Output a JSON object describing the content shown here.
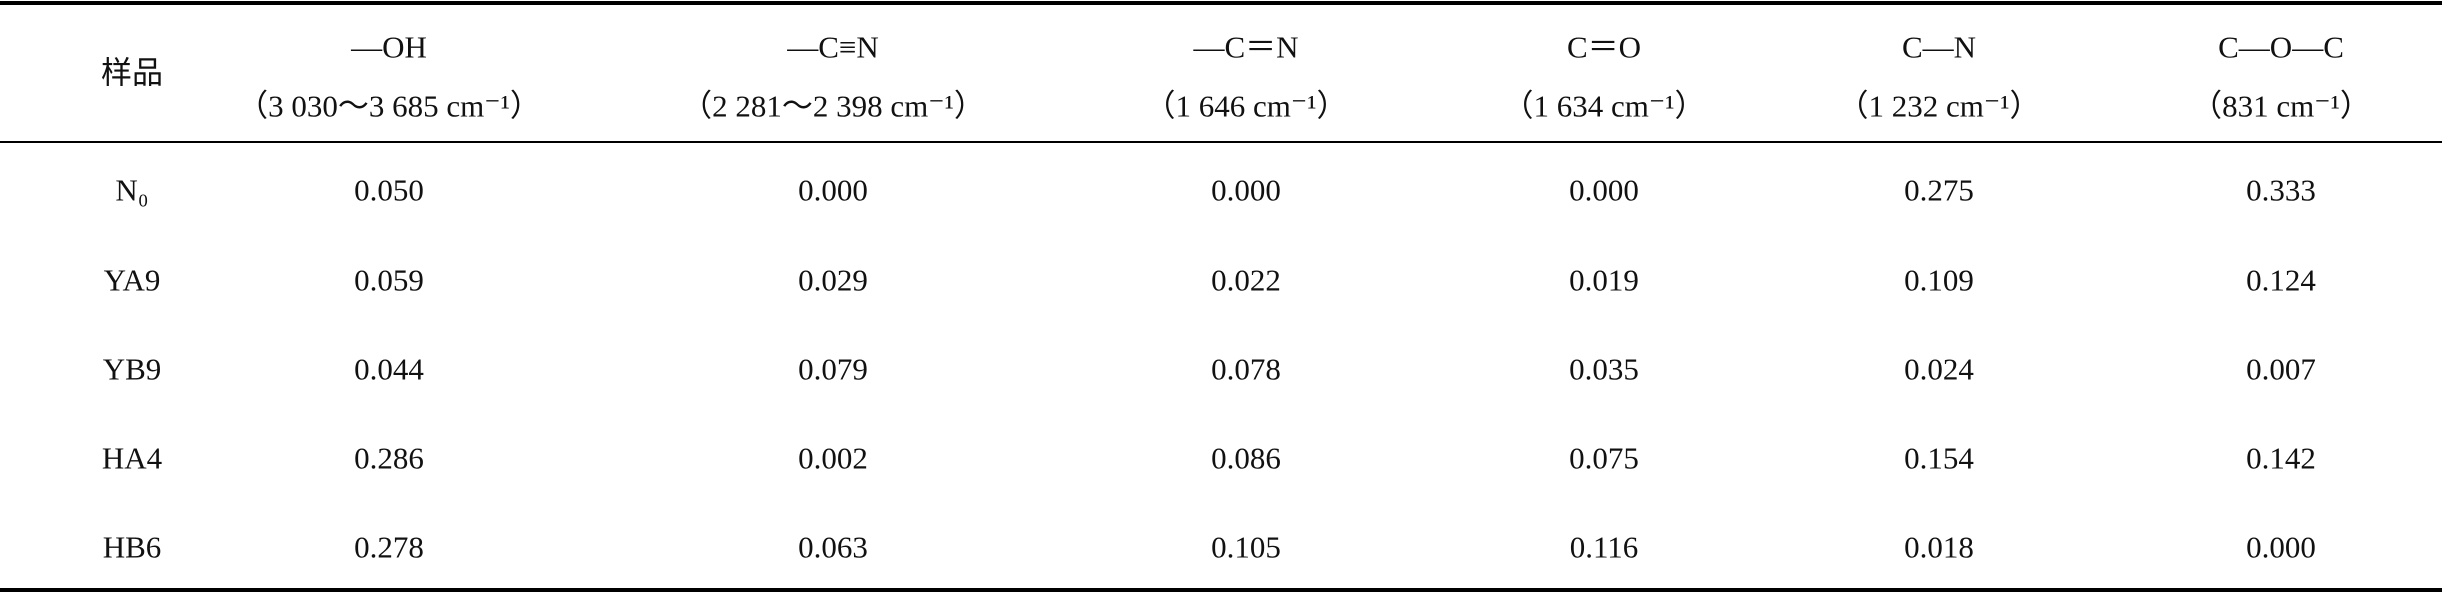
{
  "table": {
    "header": [
      {
        "name": "样品"
      },
      {
        "name": "—OH",
        "range": "（3 030～3 685 cm⁻¹）"
      },
      {
        "name": "—C≡N",
        "range": "（2 281～2 398 cm⁻¹）"
      },
      {
        "name": "—C＝N",
        "range": "（1 646 cm⁻¹）"
      },
      {
        "name": "C＝O",
        "range": "（1 634 cm⁻¹）"
      },
      {
        "name": "C—N",
        "range": "（1 232 cm⁻¹）"
      },
      {
        "name": "C—O—C",
        "range": "（831 cm⁻¹）"
      }
    ],
    "rows": [
      [
        "N₀",
        "0.050",
        "0.000",
        "0.000",
        "0.000",
        "0.275",
        "0.333"
      ],
      [
        "YA9",
        "0.059",
        "0.029",
        "0.022",
        "0.019",
        "0.109",
        "0.124"
      ],
      [
        "YB9",
        "0.044",
        "0.079",
        "0.078",
        "0.035",
        "0.024",
        "0.007"
      ],
      [
        "HA4",
        "0.286",
        "0.002",
        "0.086",
        "0.075",
        "0.154",
        "0.142"
      ],
      [
        "HB6",
        "0.278",
        "0.063",
        "0.105",
        "0.116",
        "0.018",
        "0.000"
      ]
    ]
  }
}
